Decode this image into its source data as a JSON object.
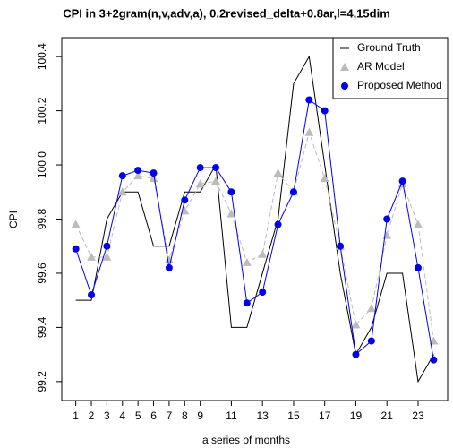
{
  "chart_data": {
    "type": "line",
    "title": "CPI in 3+2gram(n,v,adv,a), 0.2revised_delta+0.8ar,l=4,15dim",
    "x_label": "a series of months",
    "y_label": "CPI",
    "x": [
      1,
      2,
      3,
      4,
      5,
      6,
      7,
      8,
      9,
      10,
      11,
      12,
      13,
      14,
      15,
      16,
      17,
      18,
      19,
      20,
      21,
      22,
      23,
      24
    ],
    "series": [
      {
        "name": "Ground Truth",
        "color": "#000000",
        "line": "solid",
        "marker": "none",
        "values": [
          99.5,
          99.5,
          99.8,
          99.9,
          99.9,
          99.7,
          99.7,
          99.9,
          99.9,
          100.0,
          99.4,
          99.4,
          99.6,
          99.8,
          100.3,
          100.4,
          100.0,
          99.6,
          99.3,
          99.4,
          99.6,
          99.6,
          99.2,
          99.3
        ]
      },
      {
        "name": "AR Model",
        "color": "#bbbbbb",
        "line": "dashed",
        "marker": "triangle",
        "values": [
          99.78,
          99.66,
          99.66,
          99.9,
          99.96,
          99.95,
          99.65,
          99.83,
          99.93,
          99.94,
          99.82,
          99.64,
          99.67,
          99.97,
          99.9,
          100.12,
          99.95,
          99.7,
          99.41,
          99.47,
          99.74,
          99.93,
          99.78,
          99.35
        ]
      },
      {
        "name": "Proposed Method",
        "color": "#0000ee",
        "line": "solid",
        "marker": "circle",
        "values": [
          99.69,
          99.52,
          99.7,
          99.96,
          99.98,
          99.97,
          99.62,
          99.87,
          99.99,
          99.99,
          99.9,
          99.49,
          99.53,
          99.78,
          99.9,
          100.24,
          100.2,
          99.7,
          99.3,
          99.35,
          99.8,
          99.94,
          99.62,
          99.28
        ]
      }
    ],
    "xlim": [
      0.1,
      24.9
    ],
    "xticks": [
      1,
      2,
      3,
      4,
      5,
      6,
      7,
      8,
      9,
      11,
      13,
      15,
      17,
      19,
      21,
      23
    ],
    "ylim": [
      99.13,
      100.47
    ],
    "yticks": [
      99.2,
      99.4,
      99.6,
      99.8,
      {
        "value": 100,
        "label": "100.0"
      },
      100.2,
      100.4
    ],
    "legend": "top-right"
  }
}
